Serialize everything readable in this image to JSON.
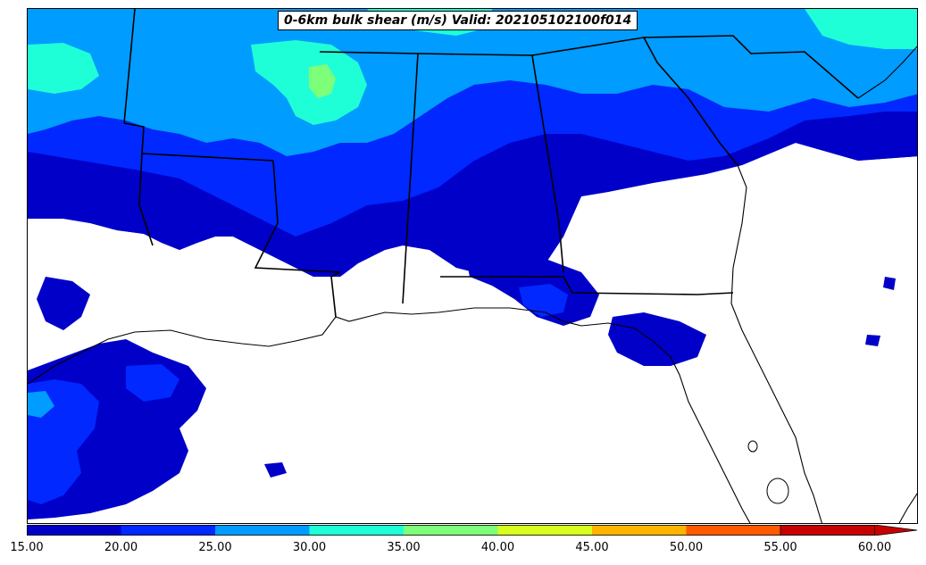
{
  "title": "0-6km bulk shear (m/s) Valid: 202105102100f014",
  "colorbar": {
    "levels": [
      15,
      20,
      25,
      30,
      35,
      40,
      45,
      50,
      55,
      60
    ],
    "tick_labels": [
      "15.00",
      "20.00",
      "25.00",
      "30.00",
      "35.00",
      "40.00",
      "45.00",
      "50.00",
      "55.00",
      "60.00"
    ],
    "colors": [
      "#0000c8",
      "#0028ff",
      "#009cff",
      "#1effd8",
      "#7dff7a",
      "#d8ff1e",
      "#ffb400",
      "#ff5a00",
      "#c80000"
    ],
    "extend": "max"
  }
}
